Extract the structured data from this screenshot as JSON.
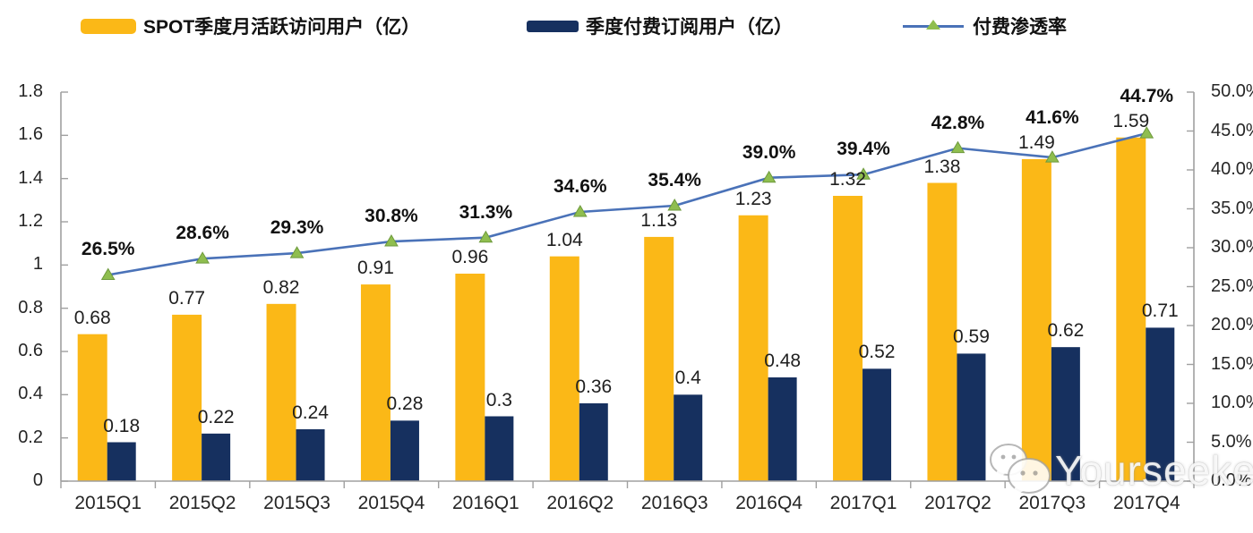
{
  "legend": {
    "items": [
      {
        "label": "SPOT季度月活跃访问用户（亿）",
        "color": "#FBB817",
        "marker": "bar-swatch"
      },
      {
        "label": "季度付费订阅用户（亿）",
        "color": "#16305F",
        "marker": "bar-swatch"
      },
      {
        "label": "付费渗透率",
        "color": "#4A72B8",
        "marker": "line-triangle",
        "marker_fill": "#8FBE4F"
      }
    ]
  },
  "chart_data": {
    "type": "combo bar+line",
    "categories": [
      "2015Q1",
      "2015Q2",
      "2015Q3",
      "2015Q4",
      "2016Q1",
      "2016Q2",
      "2016Q3",
      "2016Q4",
      "2017Q1",
      "2017Q2",
      "2017Q3",
      "2017Q4"
    ],
    "series": [
      {
        "name": "SPOT季度月活跃访问用户（亿）",
        "type": "bar",
        "axis": "left",
        "color": "#FBB817",
        "values": [
          0.68,
          0.77,
          0.82,
          0.91,
          0.96,
          1.04,
          1.13,
          1.23,
          1.32,
          1.38,
          1.49,
          1.59
        ],
        "labels": [
          "0.68",
          "0.77",
          "0.82",
          "0.91",
          "0.96",
          "1.04",
          "1.13",
          "1.23",
          "1.32",
          "1.38",
          "1.49",
          "1.59"
        ]
      },
      {
        "name": "季度付费订阅用户（亿）",
        "type": "bar",
        "axis": "left",
        "color": "#16305F",
        "values": [
          0.18,
          0.22,
          0.24,
          0.28,
          0.3,
          0.36,
          0.4,
          0.48,
          0.52,
          0.59,
          0.62,
          0.71
        ],
        "labels": [
          "0.18",
          "0.22",
          "0.24",
          "0.28",
          "0.3",
          "0.36",
          "0.4",
          "0.48",
          "0.52",
          "0.59",
          "0.62",
          "0.71"
        ]
      },
      {
        "name": "付费渗透率",
        "type": "line",
        "axis": "right",
        "color": "#4A72B8",
        "marker": "triangle",
        "marker_fill": "#8FBE4F",
        "marker_stroke": "#6E9A3D",
        "values": [
          26.5,
          28.6,
          29.3,
          30.8,
          31.3,
          34.6,
          35.4,
          39.0,
          39.4,
          42.8,
          41.6,
          44.7
        ],
        "labels": [
          "26.5%",
          "28.6%",
          "29.3%",
          "30.8%",
          "31.3%",
          "34.6%",
          "35.4%",
          "39.0%",
          "39.4%",
          "42.8%",
          "41.6%",
          "44.7%"
        ]
      }
    ],
    "left_axis": {
      "min": 0,
      "max": 1.8,
      "tick_labels": [
        "0",
        "0.2",
        "0.4",
        "0.6",
        "0.8",
        "1",
        "1.2",
        "1.4",
        "1.6",
        "1.8"
      ]
    },
    "right_axis": {
      "min": 0,
      "max": 50,
      "tick_labels": [
        "0.0%",
        "5.0%",
        "10.0%",
        "15.0%",
        "20.0%",
        "25.0%",
        "30.0%",
        "35.0%",
        "40.0%",
        "45.0%",
        "50.0%"
      ]
    },
    "grid": false,
    "legend_position": "top",
    "axis_color": "#A0A0A0"
  },
  "watermark": {
    "text": "Yourseeker",
    "icon": "wechat-icon"
  }
}
